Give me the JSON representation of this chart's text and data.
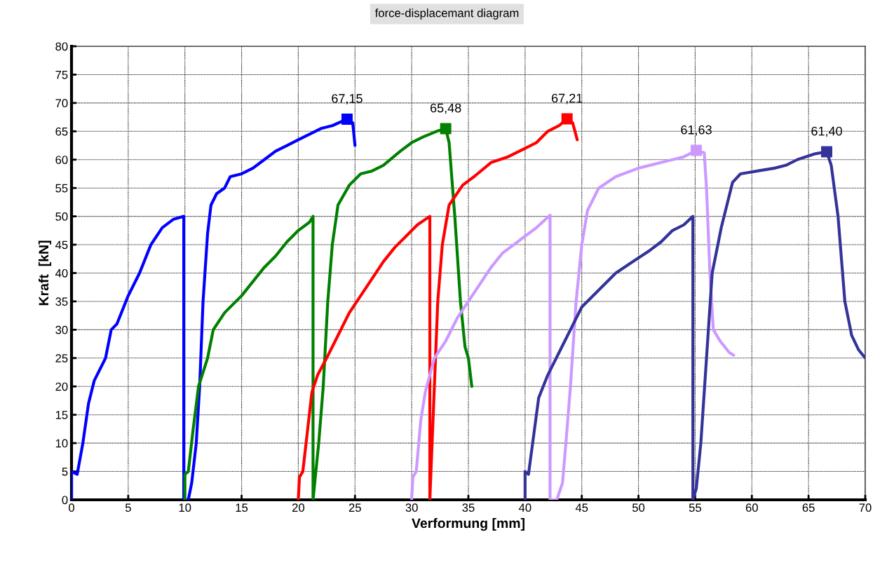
{
  "chart_data": {
    "type": "line",
    "title": "force-displacemant diagram",
    "xlabel": "Verformung [mm]",
    "ylabel": "Kraft  [kN]",
    "xlim": [
      0,
      70
    ],
    "ylim": [
      0,
      80
    ],
    "xticks": [
      0,
      5,
      10,
      15,
      20,
      25,
      30,
      35,
      40,
      45,
      50,
      55,
      60,
      65,
      70
    ],
    "yticks": [
      0,
      5,
      10,
      15,
      20,
      25,
      30,
      35,
      40,
      45,
      50,
      55,
      60,
      65,
      70,
      75,
      80
    ],
    "grid": true,
    "legend": false,
    "marker": "none",
    "line_style": "solid",
    "series": [
      {
        "color": "#0000ff",
        "x": [
          0,
          0,
          0.5,
          1,
          1.5,
          2,
          3,
          3.5,
          4,
          5,
          6,
          7,
          8,
          9,
          9.9,
          9.9,
          10.3,
          10.6,
          11,
          11.3,
          11.6,
          12,
          12.3,
          12.8,
          13.5,
          14,
          15,
          16,
          17,
          18,
          19,
          20,
          21,
          22,
          23,
          24.3,
          24.8,
          25
        ],
        "values": [
          0,
          5,
          4.5,
          10,
          17,
          21,
          25,
          30,
          31,
          36,
          40,
          45,
          48,
          49.5,
          50,
          0,
          0,
          3,
          10,
          20,
          35,
          47,
          52,
          54,
          55,
          57,
          57.5,
          58.5,
          60,
          61.5,
          62.5,
          63.5,
          64.5,
          65.5,
          66,
          67.15,
          66.5,
          62.5
        ]
      },
      {
        "color": "#008000",
        "x": [
          10,
          10,
          10.3,
          10.7,
          11.2,
          12,
          12.5,
          13.5,
          15,
          16,
          17,
          18,
          19,
          20,
          21,
          21.3,
          21.3,
          21.8,
          22.2,
          22.6,
          23,
          23.5,
          24.5,
          25.5,
          26.5,
          27.5,
          29,
          30,
          31,
          32.2,
          33,
          33.3,
          33.8,
          34.3,
          34.7,
          35,
          35.3
        ],
        "values": [
          0,
          4.5,
          5,
          12,
          20,
          25,
          30,
          33,
          36,
          38.5,
          41,
          43,
          45.5,
          47.5,
          49,
          50,
          0,
          10,
          20,
          35,
          45,
          52,
          55.5,
          57.5,
          58,
          59,
          61.5,
          63,
          64,
          65,
          65.48,
          63,
          50,
          35,
          27,
          25,
          20
        ]
      },
      {
        "color": "#ff0000",
        "x": [
          20,
          20.1,
          20.4,
          20.8,
          21.2,
          21.7,
          22.5,
          23.5,
          24.5,
          25.5,
          26.5,
          27.5,
          28.5,
          29.5,
          30.5,
          31.6,
          31.6,
          31.7,
          32,
          32.3,
          32.7,
          33.3,
          34.5,
          35.5,
          37,
          38.5,
          40,
          41,
          42,
          43,
          43.7,
          44.2,
          44.6
        ],
        "values": [
          0,
          4,
          5,
          12,
          19,
          22,
          25,
          29,
          33,
          36,
          39,
          42,
          44.5,
          46.5,
          48.5,
          50,
          0,
          5,
          20,
          35,
          45,
          52,
          55.5,
          57,
          59.5,
          60.5,
          62,
          63,
          65,
          66,
          67.21,
          66.5,
          63.5
        ]
      },
      {
        "color": "#cc99ff",
        "x": [
          30,
          30.1,
          30.4,
          30.8,
          31.2,
          32,
          33,
          34,
          35,
          36,
          37,
          38,
          39,
          40,
          41,
          42.2,
          42.2,
          42.8,
          43.3,
          43.6,
          44,
          44.5,
          45,
          45.5,
          46.5,
          48,
          50,
          52,
          54,
          55.1,
          55.8,
          56,
          56.3,
          56.6,
          57.2,
          58,
          58.4
        ],
        "values": [
          0,
          4,
          5,
          14,
          19,
          25,
          28,
          32,
          35,
          38,
          41,
          43.5,
          45,
          46.5,
          48,
          50.2,
          0,
          0,
          3,
          10,
          20,
          35,
          45,
          51,
          55,
          57,
          58.5,
          59.5,
          60.5,
          61.63,
          61.2,
          55,
          40,
          30,
          28,
          26,
          25.5
        ]
      },
      {
        "color": "#333399",
        "x": [
          40,
          40,
          40.3,
          40.8,
          41.2,
          42,
          43,
          44,
          45,
          46.5,
          48,
          49.5,
          51,
          52,
          53,
          54,
          54.8,
          54.8,
          55.1,
          55.5,
          56,
          56.5,
          57.3,
          58.3,
          59,
          60.5,
          62,
          63,
          64,
          65.5,
          66.6,
          67,
          67.6,
          68.2,
          68.8,
          69.4,
          70
        ],
        "values": [
          0,
          5,
          4.5,
          12,
          18,
          22,
          26,
          30,
          34,
          37,
          40,
          42,
          44,
          45.5,
          47.5,
          48.5,
          50,
          0,
          2,
          10,
          25,
          40,
          48,
          56,
          57.5,
          58,
          58.5,
          59,
          60,
          61,
          61.4,
          59,
          50,
          35,
          29,
          26.5,
          25
        ]
      },
      {
        "type": "scatter",
        "marker": "square",
        "x": [
          24.3,
          33,
          43.7,
          55.1,
          66.6
        ],
        "values": [
          67.15,
          65.48,
          67.21,
          61.63,
          61.4
        ],
        "colors": [
          "#0000ff",
          "#008000",
          "#ff0000",
          "#cc99ff",
          "#333399"
        ],
        "value_labels": [
          "67,15",
          "65,48",
          "67,21",
          "61,63",
          "61,40"
        ]
      }
    ]
  }
}
